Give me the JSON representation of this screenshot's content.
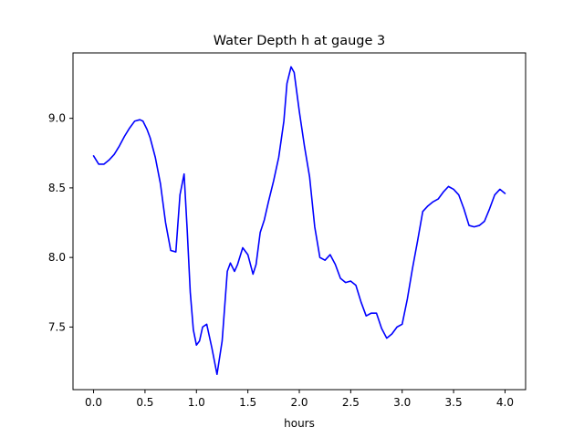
{
  "chart_data": {
    "type": "line",
    "title": "Water Depth h at gauge 3",
    "xlabel": "hours",
    "ylabel": "",
    "xlim": [
      -0.2,
      4.2
    ],
    "ylim": [
      7.05,
      9.47
    ],
    "xticks": [
      0.0,
      0.5,
      1.0,
      1.5,
      2.0,
      2.5,
      3.0,
      3.5,
      4.0
    ],
    "xtick_labels": [
      "0.0",
      "0.5",
      "1.0",
      "1.5",
      "2.0",
      "2.5",
      "3.0",
      "3.5",
      "4.0"
    ],
    "yticks": [
      7.5,
      8.0,
      8.5,
      9.0
    ],
    "ytick_labels": [
      "7.5",
      "8.0",
      "8.5",
      "9.0"
    ],
    "grid": false,
    "series": [
      {
        "color": "#0000ff",
        "x": [
          0.0,
          0.05,
          0.1,
          0.15,
          0.2,
          0.25,
          0.3,
          0.35,
          0.4,
          0.45,
          0.48,
          0.52,
          0.55,
          0.6,
          0.65,
          0.7,
          0.75,
          0.8,
          0.84,
          0.88,
          0.91,
          0.94,
          0.97,
          1.0,
          1.03,
          1.06,
          1.1,
          1.15,
          1.2,
          1.25,
          1.3,
          1.33,
          1.37,
          1.4,
          1.45,
          1.5,
          1.55,
          1.58,
          1.62,
          1.66,
          1.7,
          1.75,
          1.8,
          1.85,
          1.88,
          1.92,
          1.95,
          2.0,
          2.05,
          2.1,
          2.15,
          2.2,
          2.25,
          2.3,
          2.35,
          2.4,
          2.45,
          2.5,
          2.55,
          2.6,
          2.65,
          2.7,
          2.75,
          2.8,
          2.85,
          2.9,
          2.95,
          3.0,
          3.05,
          3.1,
          3.15,
          3.2,
          3.25,
          3.3,
          3.35,
          3.4,
          3.45,
          3.5,
          3.55,
          3.6,
          3.65,
          3.7,
          3.75,
          3.8,
          3.85,
          3.9,
          3.95,
          4.0
        ],
        "y": [
          8.73,
          8.67,
          8.67,
          8.7,
          8.74,
          8.8,
          8.87,
          8.93,
          8.98,
          8.99,
          8.98,
          8.92,
          8.86,
          8.72,
          8.53,
          8.25,
          8.05,
          8.04,
          8.45,
          8.6,
          8.2,
          7.75,
          7.48,
          7.37,
          7.4,
          7.5,
          7.52,
          7.35,
          7.16,
          7.4,
          7.9,
          7.96,
          7.9,
          7.95,
          8.07,
          8.02,
          7.88,
          7.95,
          8.18,
          8.27,
          8.4,
          8.55,
          8.72,
          8.98,
          9.25,
          9.37,
          9.33,
          9.05,
          8.8,
          8.58,
          8.22,
          8.0,
          7.98,
          8.02,
          7.95,
          7.85,
          7.82,
          7.83,
          7.8,
          7.68,
          7.58,
          7.6,
          7.6,
          7.49,
          7.42,
          7.45,
          7.5,
          7.52,
          7.7,
          7.92,
          8.12,
          8.33,
          8.37,
          8.4,
          8.42,
          8.47,
          8.51,
          8.49,
          8.45,
          8.35,
          8.23,
          8.22,
          8.23,
          8.26,
          8.35,
          8.45,
          8.49,
          8.46
        ]
      }
    ]
  }
}
